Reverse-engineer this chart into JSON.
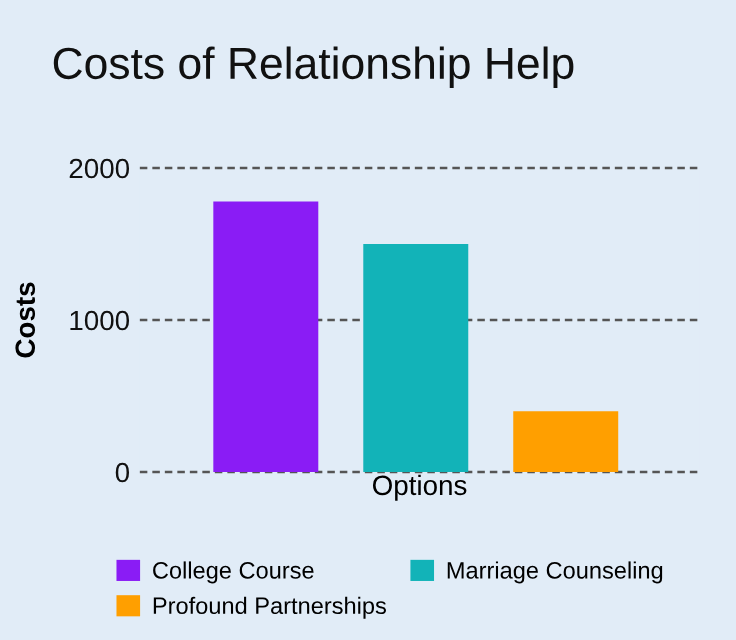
{
  "chart_data": {
    "type": "bar",
    "title": "Costs of Relationship Help",
    "xlabel": "Options",
    "ylabel": "Costs",
    "categories": [
      null,
      null,
      null
    ],
    "series": [
      {
        "name": "College Course",
        "color": "#8a1cf5",
        "values": [
          1780,
          null,
          null
        ]
      },
      {
        "name": "Marriage Counseling",
        "color": "#12b3b8",
        "values": [
          null,
          1500,
          null
        ]
      },
      {
        "name": "Profound Partnerships",
        "color": "#ff9f00",
        "values": [
          null,
          null,
          400
        ]
      }
    ],
    "ylim": [
      0,
      2000
    ],
    "yticks": [
      0,
      1000,
      2000
    ],
    "grid": "y",
    "legend": "bottom",
    "tick_labels": "y"
  }
}
